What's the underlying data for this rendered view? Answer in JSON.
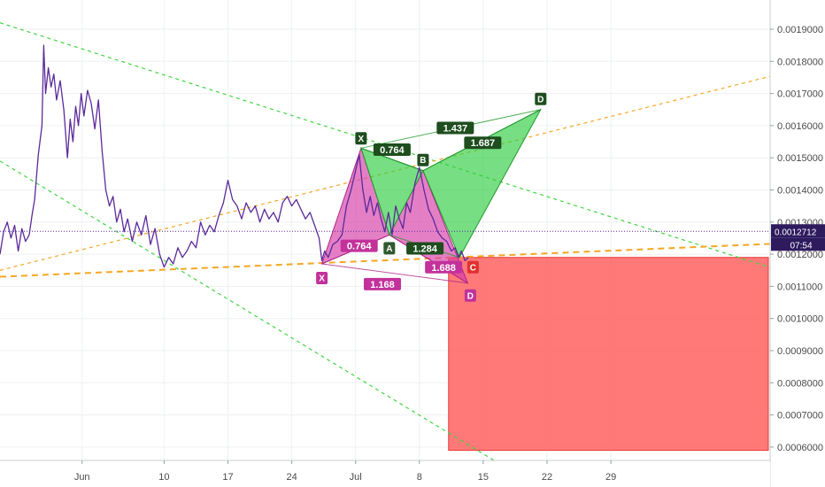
{
  "chart_data": {
    "type": "line",
    "title": "",
    "x_ticks": [
      {
        "label": "Jun",
        "i": 9
      },
      {
        "label": "10",
        "i": 18
      },
      {
        "label": "17",
        "i": 25
      },
      {
        "label": "24",
        "i": 32
      },
      {
        "label": "Jul",
        "i": 39
      },
      {
        "label": "8",
        "i": 46
      },
      {
        "label": "15",
        "i": 53
      },
      {
        "label": "22",
        "i": 60
      },
      {
        "label": "29",
        "i": 67
      }
    ],
    "ylim": [
      0.00056,
      0.00203
    ],
    "y_ticks": [
      "0.0019000",
      "0.0018000",
      "0.0017000",
      "0.0016000",
      "0.0015000",
      "0.0014000",
      "0.0013000",
      "0.0012000",
      "0.0011000",
      "0.0010000",
      "0.0009000",
      "0.0008000",
      "0.0007000",
      "0.0006000"
    ],
    "grid": true,
    "current_price": "0.0012712",
    "current_value": 0.0012712,
    "countdown": "07:54",
    "series": [
      {
        "values": [
          [
            0.0,
            0.0012
          ],
          [
            0.4,
            0.00127
          ],
          [
            0.8,
            0.0013
          ],
          [
            1.2,
            0.00125
          ],
          [
            1.6,
            0.00129
          ],
          [
            2.0,
            0.00121
          ],
          [
            2.4,
            0.00128
          ],
          [
            2.8,
            0.00124
          ],
          [
            3.2,
            0.00126
          ],
          [
            3.5,
            0.00132
          ],
          [
            3.8,
            0.00137
          ],
          [
            4.2,
            0.00151
          ],
          [
            4.6,
            0.0016
          ],
          [
            4.8,
            0.00185
          ],
          [
            5.0,
            0.0017
          ],
          [
            5.3,
            0.00178
          ],
          [
            5.6,
            0.00172
          ],
          [
            5.9,
            0.00176
          ],
          [
            6.2,
            0.00168
          ],
          [
            6.6,
            0.00174
          ],
          [
            7.0,
            0.00165
          ],
          [
            7.4,
            0.0015
          ],
          [
            7.7,
            0.00162
          ],
          [
            8.0,
            0.00155
          ],
          [
            8.3,
            0.00166
          ],
          [
            8.6,
            0.0016
          ],
          [
            8.9,
            0.0017
          ],
          [
            9.2,
            0.00163
          ],
          [
            9.6,
            0.00171
          ],
          [
            10.0,
            0.00167
          ],
          [
            10.4,
            0.00159
          ],
          [
            10.8,
            0.00168
          ],
          [
            11.2,
            0.00152
          ],
          [
            11.6,
            0.0014
          ],
          [
            12.0,
            0.00135
          ],
          [
            12.4,
            0.00138
          ],
          [
            12.8,
            0.0013
          ],
          [
            13.2,
            0.00134
          ],
          [
            13.6,
            0.00127
          ],
          [
            14.0,
            0.00131
          ],
          [
            14.5,
            0.00124
          ],
          [
            15.0,
            0.0013
          ],
          [
            15.5,
            0.00126
          ],
          [
            16.0,
            0.00132
          ],
          [
            16.5,
            0.00123
          ],
          [
            17.0,
            0.00128
          ],
          [
            17.5,
            0.0012
          ],
          [
            18.0,
            0.00116
          ],
          [
            18.5,
            0.00119
          ],
          [
            19.0,
            0.00117
          ],
          [
            19.5,
            0.00122
          ],
          [
            20.0,
            0.00119
          ],
          [
            20.5,
            0.00121
          ],
          [
            21.0,
            0.00124
          ],
          [
            21.5,
            0.00122
          ],
          [
            22.0,
            0.0013
          ],
          [
            22.5,
            0.00126
          ],
          [
            23.0,
            0.00129
          ],
          [
            23.5,
            0.00127
          ],
          [
            24.0,
            0.00132
          ],
          [
            24.5,
            0.00136
          ],
          [
            25.0,
            0.00143
          ],
          [
            25.5,
            0.00137
          ],
          [
            26.0,
            0.00135
          ],
          [
            26.5,
            0.00131
          ],
          [
            27.0,
            0.00136
          ],
          [
            27.5,
            0.00133
          ],
          [
            28.0,
            0.00135
          ],
          [
            28.5,
            0.0013
          ],
          [
            29.0,
            0.00134
          ],
          [
            29.5,
            0.00131
          ],
          [
            30.0,
            0.00133
          ],
          [
            30.5,
            0.0013
          ],
          [
            31.0,
            0.00136
          ],
          [
            31.5,
            0.00138
          ],
          [
            32.0,
            0.00135
          ],
          [
            32.5,
            0.00137
          ],
          [
            33.0,
            0.00134
          ],
          [
            33.5,
            0.00131
          ],
          [
            34.0,
            0.00133
          ],
          [
            34.5,
            0.00129
          ],
          [
            35.0,
            0.00125
          ],
          [
            35.3,
            0.00118
          ],
          [
            35.6,
            0.00121
          ],
          [
            36.0,
            0.00119
          ],
          [
            36.5,
            0.00123
          ],
          [
            37.0,
            0.00124
          ],
          [
            37.5,
            0.00126
          ],
          [
            38.0,
            0.00135
          ],
          [
            38.5,
            0.0014
          ],
          [
            39.0,
            0.00146
          ],
          [
            39.4,
            0.00151
          ],
          [
            39.8,
            0.0014
          ],
          [
            40.2,
            0.00133
          ],
          [
            40.6,
            0.00138
          ],
          [
            41.0,
            0.00132
          ],
          [
            41.4,
            0.00136
          ],
          [
            41.8,
            0.00131
          ],
          [
            42.2,
            0.00127
          ],
          [
            42.6,
            0.00133
          ],
          [
            43.0,
            0.00126
          ],
          [
            43.4,
            0.00135
          ],
          [
            43.8,
            0.00131
          ],
          [
            44.2,
            0.00128
          ],
          [
            44.6,
            0.00136
          ],
          [
            45.0,
            0.00133
          ],
          [
            45.5,
            0.00142
          ],
          [
            46.0,
            0.00147
          ],
          [
            46.5,
            0.0014
          ],
          [
            47.0,
            0.00134
          ],
          [
            47.5,
            0.00131
          ],
          [
            48.0,
            0.00127
          ],
          [
            48.5,
            0.00125
          ],
          [
            49.0,
            0.00124
          ],
          [
            49.5,
            0.00121
          ],
          [
            49.9,
            0.00122
          ],
          [
            50.3,
            0.00119
          ],
          [
            50.6,
            0.00121
          ],
          [
            51.0,
            0.00118
          ],
          [
            51.4,
            0.00119
          ]
        ]
      }
    ],
    "trendlines": [
      {
        "kind": "dashed-green",
        "from": [
          0.0,
          0.00192
        ],
        "to": [
          91.0,
          0.0011
        ]
      },
      {
        "kind": "dashed-green",
        "from": [
          0.0,
          0.00149
        ],
        "to": [
          57.0,
          0.00051
        ]
      },
      {
        "kind": "dashed-orange",
        "from": [
          0.0,
          0.00115
        ],
        "to": [
          91.0,
          0.0018
        ]
      },
      {
        "kind": "dashed-orange-thick",
        "from": [
          0.0,
          0.00113
        ],
        "to": [
          91.0,
          0.00124
        ]
      }
    ],
    "patterns": [
      {
        "name": "bullish",
        "points": [
          {
            "label": "X",
            "i": 35.3,
            "v": 0.00117
          },
          {
            "label": "A",
            "i": 39.6,
            "v": 0.00153
          },
          {
            "label": "B",
            "i": 42.7,
            "v": 0.00126
          },
          {
            "label": "C",
            "i": 46.4,
            "v": 0.00146
          },
          {
            "label": "D",
            "i": 51.3,
            "v": 0.00111
          }
        ],
        "pt_labels": [
          "X",
          "A",
          "C",
          "D"
        ],
        "ratios": [
          "0.764",
          "1.284",
          "1.688",
          "1.168"
        ]
      },
      {
        "name": "bearish",
        "points": [
          {
            "label": "X",
            "i": 39.6,
            "v": 0.00153
          },
          {
            "label": "A",
            "i": 42.7,
            "v": 0.00126
          },
          {
            "label": "B",
            "i": 46.4,
            "v": 0.00146
          },
          {
            "label": "C",
            "i": 50.4,
            "v": 0.00119
          },
          {
            "label": "D",
            "i": 59.3,
            "v": 0.00165
          }
        ],
        "pt_labels": [
          "X",
          "A",
          "B",
          "D"
        ],
        "ratios": [
          "0.764",
          "1.437",
          "1.687"
        ]
      }
    ],
    "zone": {
      "from_i": 49.2,
      "to_i": 91.0,
      "top": 0.00119,
      "bottom": 0.00059
    },
    "colors": {
      "price_line": "#5b2a9a",
      "green_fill": "#2ecc40",
      "green_label": "#1e4d1e",
      "pink_fill": "#d63aa8",
      "pink_label": "#c2329a",
      "zone": "#ff6161",
      "orange": "#f5a623",
      "dash_green": "#3ed63e",
      "price_badge": "#2d1b5e"
    }
  }
}
